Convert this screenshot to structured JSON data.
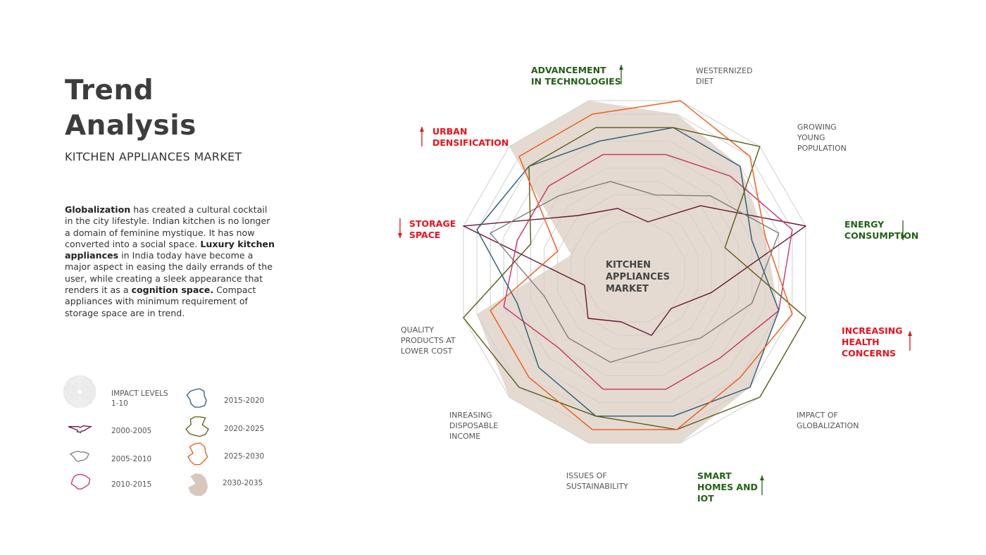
{
  "header": {
    "title_line1": "Trend",
    "title_line2": "Analysis",
    "subtitle": "KITCHEN APPLIANCES MARKET"
  },
  "description": {
    "b1": "Globalization",
    "t1": " has created a cultural cocktail in the city lifestyle. Indian kitchen is no longer a domain of feminine mystique. It has now converted into a social space. ",
    "b2": "Luxury kitchen appliances",
    "t2": " in India today have become a major aspect in easing the daily errands of the user, while creating a sleek appearance that renders it as a ",
    "b3": "cognition space.",
    "t3": " Compact appliances with minimum requirement of storage space are in trend."
  },
  "legend": {
    "impact_levels": "IMPACT LEVELS\n1-10"
  },
  "colors": {
    "grid": "#cfcfcf",
    "green": "#236016",
    "red": "#e5121d"
  },
  "chart_data": {
    "type": "radar",
    "title": "KITCHEN APPLIANCES MARKET",
    "center_label": "KITCHEN\nAPPLIANCES\nMARKET",
    "levels": [
      1,
      10
    ],
    "axes": [
      {
        "label": "WESTERNIZED\nDIET",
        "highlight": "none",
        "trend": "none"
      },
      {
        "label": "GROWING\nYOUNG\nPOPULATION",
        "highlight": "none",
        "trend": "none"
      },
      {
        "label": "ENERGY\nCONSUMPTION",
        "highlight": "green",
        "trend": "down"
      },
      {
        "label": "INCREASING\nHEALTH\nCONCERNS",
        "highlight": "red",
        "trend": "up"
      },
      {
        "label": "IMPACT OF\nGLOBALIZATION",
        "highlight": "none",
        "trend": "none"
      },
      {
        "label": "SMART\nHOMES AND\nIOT",
        "highlight": "green",
        "trend": "up"
      },
      {
        "label": "ISSUES OF\nSUSTAINABILITY",
        "highlight": "none",
        "trend": "none"
      },
      {
        "label": "INREASING\nDISPOSABLE\nINCOME",
        "highlight": "none",
        "trend": "none"
      },
      {
        "label": "QUALITY\nPRODUCTS AT\nLOWER COST",
        "highlight": "none",
        "trend": "none"
      },
      {
        "label": "STORAGE\nSPACE",
        "highlight": "red",
        "trend": "down"
      },
      {
        "label": "URBAN\nDENSIFICATION",
        "highlight": "red",
        "trend": "up"
      },
      {
        "label": "ADVANCEMENT\nIN TECHNOLOGIES",
        "highlight": "green",
        "trend": "up"
      }
    ],
    "series": [
      {
        "name": "2030-2035",
        "color": "#e4dad1",
        "filled": true,
        "values": [
          9,
          8,
          7,
          8,
          9,
          10,
          10,
          10,
          9,
          2,
          10,
          10
        ]
      },
      {
        "name": "2000-2005",
        "color": "#6b1434",
        "filled": false,
        "values": [
          1,
          4,
          10,
          3,
          1,
          2,
          1,
          2,
          1,
          10,
          3,
          2
        ]
      },
      {
        "name": "2005-2010",
        "color": "#7f7f7f",
        "filled": false,
        "values": [
          3,
          5,
          8,
          6,
          4,
          3,
          4,
          4,
          4,
          8,
          5,
          4
        ]
      },
      {
        "name": "2010-2015",
        "color": "#c8326a",
        "filled": false,
        "values": [
          6,
          7,
          9,
          8,
          6,
          6,
          6,
          5,
          7,
          6,
          6,
          6
        ]
      },
      {
        "name": "2015-2020",
        "color": "#2d5a73",
        "filled": false,
        "values": [
          8,
          8,
          6,
          8,
          9,
          8,
          8,
          7,
          6,
          9,
          8,
          7
        ]
      },
      {
        "name": "2020-2025",
        "color": "#5b5b16",
        "filled": false,
        "values": [
          8,
          10,
          4,
          10,
          10,
          9,
          8,
          9,
          10,
          5,
          8,
          8
        ]
      },
      {
        "name": "2025-2030",
        "color": "#f05a16",
        "filled": false,
        "values": [
          10,
          9,
          7,
          9,
          8,
          9,
          9,
          8,
          8,
          3,
          9,
          9
        ]
      }
    ]
  }
}
